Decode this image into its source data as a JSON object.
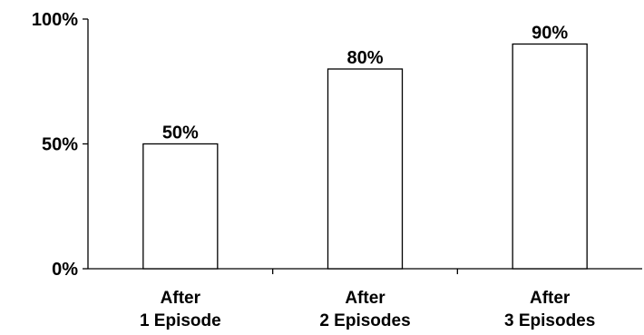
{
  "chart_data": {
    "type": "bar",
    "categories": [
      [
        "After",
        "1 Episode"
      ],
      [
        "After",
        "2 Episodes"
      ],
      [
        "After",
        "3 Episodes"
      ]
    ],
    "values": [
      50,
      80,
      90
    ],
    "data_labels": [
      "50%",
      "80%",
      "90%"
    ],
    "ylim": [
      0,
      100
    ],
    "yticks": [
      {
        "value": 0,
        "label": "0%"
      },
      {
        "value": 50,
        "label": "50%"
      },
      {
        "value": 100,
        "label": "100%"
      }
    ],
    "title": "",
    "xlabel": "",
    "ylabel": "",
    "grid": false,
    "legend": "none",
    "bar_fill": "#ffffff",
    "bar_stroke": "#000000"
  }
}
